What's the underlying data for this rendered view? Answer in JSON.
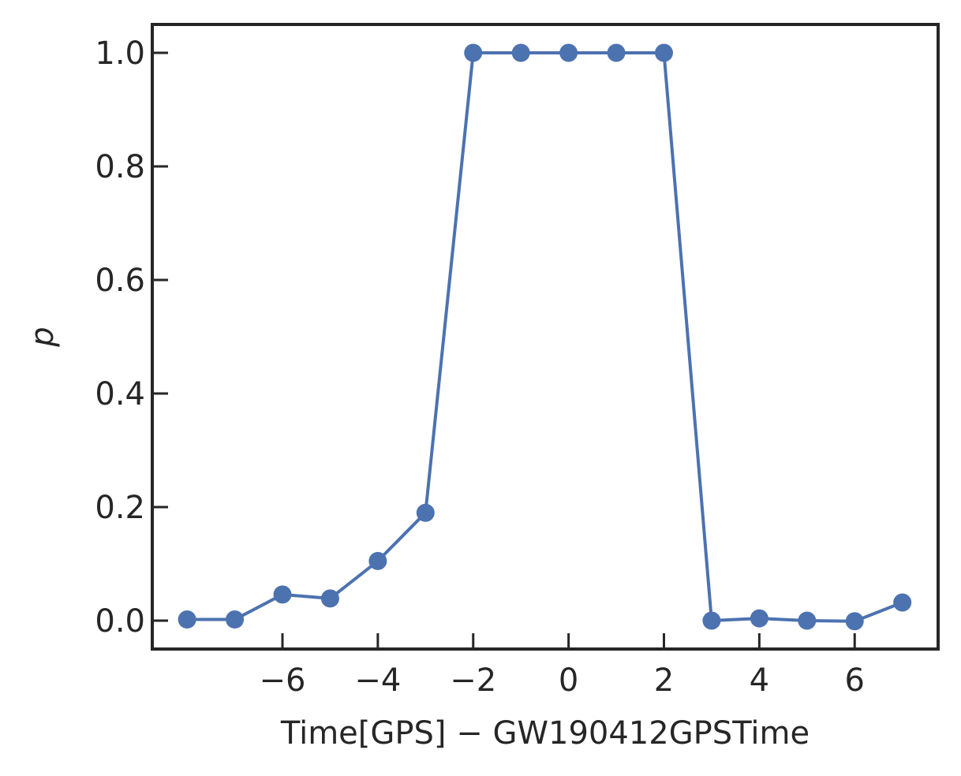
{
  "chart_data": {
    "type": "line",
    "x": [
      -8,
      -7,
      -6,
      -5,
      -4,
      -3,
      -2,
      -1,
      0,
      1,
      2,
      3,
      4,
      5,
      6,
      7
    ],
    "series": [
      {
        "values": [
          0.002,
          0.002,
          0.046,
          0.039,
          0.105,
          0.19,
          1.0,
          1.0,
          1.0,
          1.0,
          1.0,
          0.0,
          0.004,
          0.0,
          -0.001,
          0.032
        ]
      }
    ],
    "xlabel": "Time[GPS] − GW190412GPSTime",
    "ylabel": "p",
    "xlim": [
      -8.73,
      7.75
    ],
    "ylim": [
      -0.05,
      1.05
    ],
    "xticks": [
      -6,
      -4,
      -2,
      0,
      2,
      4,
      6
    ],
    "xtick_labels": [
      "−6",
      "−4",
      "−2",
      "0",
      "2",
      "4",
      "6"
    ],
    "yticks": [
      0.0,
      0.2,
      0.4,
      0.6,
      0.8,
      1.0
    ],
    "ytick_labels": [
      "0.0",
      "0.2",
      "0.4",
      "0.6",
      "0.8",
      "1.0"
    ],
    "grid": false,
    "colors": {
      "series": "#4c72b0",
      "axes": "#262626",
      "text": "#262626"
    }
  }
}
